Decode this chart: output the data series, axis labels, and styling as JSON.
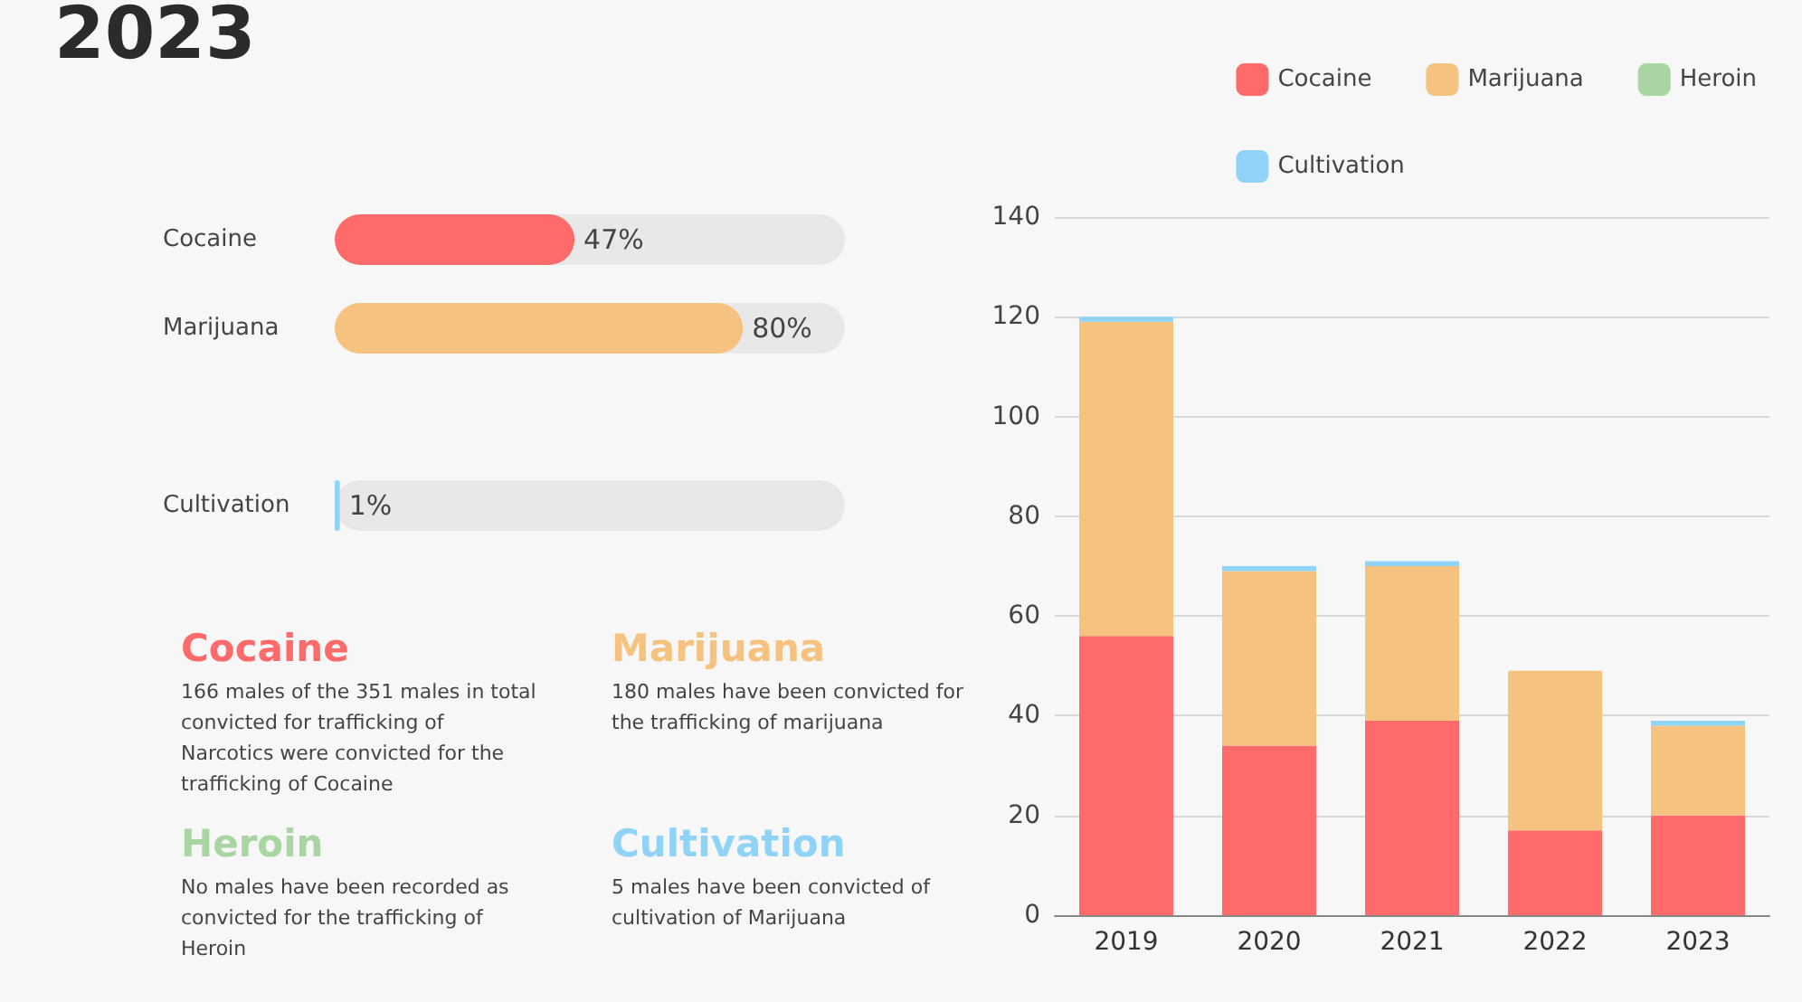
{
  "chart_data": [
    {
      "type": "bar",
      "title": "2023",
      "orientation": "horizontal",
      "categories": [
        "Cocaine",
        "Marijuana",
        null,
        "Cultivation"
      ],
      "values": [
        47,
        80,
        null,
        1
      ],
      "colors": [
        "#ff6b6b",
        "#f5c27f",
        "#a8d5a2",
        "#8fd3f7"
      ],
      "value_labels": [
        "47%",
        "80%",
        null,
        "1%"
      ],
      "xlim": [
        0,
        100
      ],
      "tick_labels": "y",
      "annotations": [
        "Cocaine",
        "166 males of the 351 males in total convicted for trafficking of Narcotics were convicted for the trafficking of Cocaine",
        "Marijuana",
        "180 males have been convicted for the trafficking of marijuana",
        "Heroin",
        "No males have been recorded as convicted for the trafficking of Heroin",
        "Cultivation",
        "5 males have been convicted of cultivation of Marijuana"
      ]
    },
    {
      "type": "bar",
      "stacked": true,
      "categories": [
        "2019",
        "2020",
        "2021",
        "2022",
        "2023"
      ],
      "series": [
        {
          "name": "Cocaine",
          "color": "#ff6b6b",
          "values": [
            56,
            34,
            39,
            17,
            20
          ]
        },
        {
          "name": "Marijuana",
          "color": "#f5c27f",
          "values": [
            63,
            35,
            31,
            32,
            18
          ]
        },
        {
          "name": "Heroin",
          "color": "#a8d5a2",
          "values": [
            0,
            0,
            0,
            0,
            0
          ]
        },
        {
          "name": "Cultivation",
          "color": "#8fd3f7",
          "values": [
            1,
            1,
            1,
            0,
            1
          ]
        }
      ],
      "ylim": [
        0,
        140
      ],
      "yticks": [
        0,
        20,
        40,
        60,
        80,
        100,
        120,
        140
      ],
      "grid": "y",
      "legend": "top right"
    }
  ]
}
